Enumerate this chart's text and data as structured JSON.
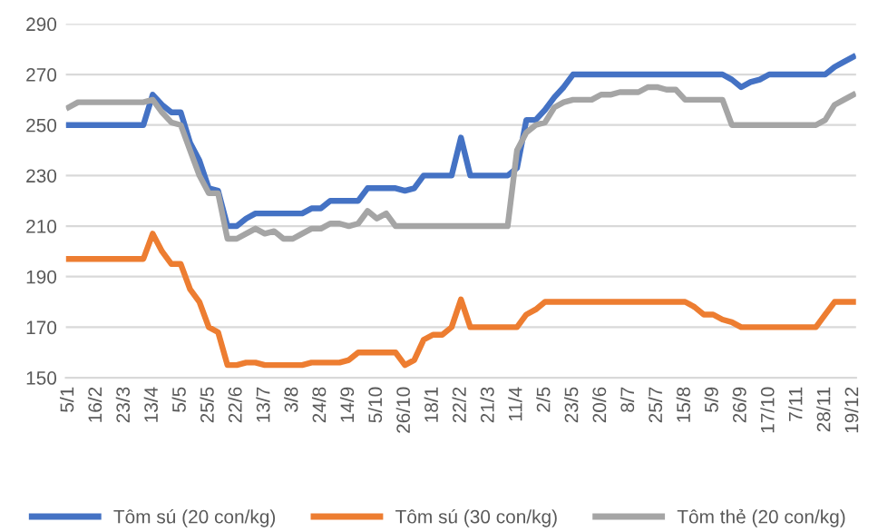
{
  "chart_data": {
    "type": "line",
    "categories": [
      "5/1",
      null,
      null,
      "16/2",
      null,
      null,
      "23/3",
      null,
      null,
      "13/4",
      null,
      null,
      "5/5",
      null,
      null,
      "25/5",
      null,
      null,
      "22/6",
      null,
      null,
      "13/7",
      null,
      null,
      "3/8",
      null,
      null,
      "24/8",
      null,
      null,
      "14/9",
      null,
      null,
      "5/10",
      null,
      null,
      "26/10",
      null,
      null,
      "18/1",
      null,
      null,
      "22/2",
      null,
      null,
      "21/3",
      null,
      null,
      "11/4",
      null,
      null,
      "2/5",
      null,
      null,
      "23/5",
      null,
      null,
      "20/6",
      null,
      null,
      "8/7",
      null,
      null,
      "25/7",
      null,
      null,
      "15/8",
      null,
      null,
      "5/9",
      null,
      null,
      "26/9",
      null,
      null,
      "17/10",
      null,
      null,
      "7/11",
      null,
      null,
      "28/11",
      null,
      null,
      "19/12"
    ],
    "series": [
      {
        "name": "Tôm sú (20 con/kg)",
        "color": "#4472c4",
        "values": [
          250,
          250,
          250,
          250,
          250,
          250,
          250,
          250,
          250,
          262,
          258,
          255,
          255,
          243,
          236,
          225,
          224,
          210,
          210,
          213,
          215,
          215,
          215,
          215,
          215,
          215,
          217,
          217,
          220,
          220,
          220,
          220,
          225,
          225,
          225,
          225,
          224,
          225,
          230,
          230,
          230,
          230,
          245,
          230,
          230,
          230,
          230,
          230,
          233,
          252,
          252,
          256,
          261,
          265,
          270,
          270,
          270,
          270,
          270,
          270,
          270,
          270,
          270,
          270,
          270,
          270,
          270,
          270,
          270,
          270,
          270,
          268,
          265,
          267,
          268,
          270,
          270,
          270,
          270,
          270,
          270,
          270,
          273,
          275,
          277
        ]
      },
      {
        "name": "Tôm sú (30 con/kg)",
        "color": "#ed7d31",
        "values": [
          197,
          197,
          197,
          197,
          197,
          197,
          197,
          197,
          197,
          207,
          200,
          195,
          195,
          185,
          180,
          170,
          168,
          155,
          155,
          156,
          156,
          155,
          155,
          155,
          155,
          155,
          156,
          156,
          156,
          156,
          157,
          160,
          160,
          160,
          160,
          160,
          155,
          157,
          165,
          167,
          167,
          170,
          181,
          170,
          170,
          170,
          170,
          170,
          170,
          175,
          177,
          180,
          180,
          180,
          180,
          180,
          180,
          180,
          180,
          180,
          180,
          180,
          180,
          180,
          180,
          180,
          180,
          178,
          175,
          175,
          173,
          172,
          170,
          170,
          170,
          170,
          170,
          170,
          170,
          170,
          170,
          175,
          180,
          180,
          180
        ]
      },
      {
        "name": "Tôm thẻ (20 con/kg)",
        "color": "#a5a5a5",
        "values": [
          257,
          259,
          259,
          259,
          259,
          259,
          259,
          259,
          259,
          260,
          255,
          251,
          250,
          240,
          230,
          223,
          223,
          205,
          205,
          207,
          209,
          207,
          208,
          205,
          205,
          207,
          209,
          209,
          211,
          211,
          210,
          211,
          216,
          213,
          215,
          210,
          210,
          210,
          210,
          210,
          210,
          210,
          210,
          210,
          210,
          210,
          210,
          210,
          240,
          247,
          250,
          251,
          257,
          259,
          260,
          260,
          260,
          262,
          262,
          263,
          263,
          263,
          265,
          265,
          264,
          264,
          260,
          260,
          260,
          260,
          260,
          250,
          250,
          250,
          250,
          250,
          250,
          250,
          250,
          250,
          250,
          252,
          258,
          260,
          262
        ]
      }
    ],
    "ylim": [
      150,
      290
    ],
    "yticks": [
      150,
      170,
      190,
      210,
      230,
      250,
      270,
      290
    ],
    "grid": "y",
    "legend": "bottom",
    "marker": "none",
    "line_style": "solid"
  }
}
